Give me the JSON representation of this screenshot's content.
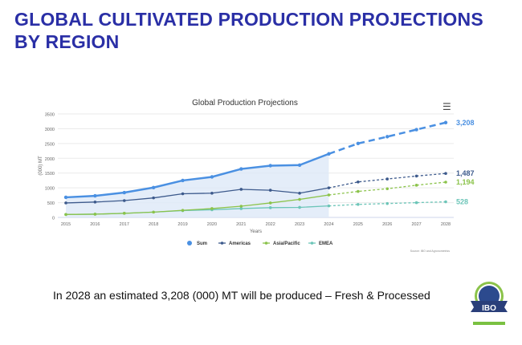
{
  "page": {
    "title": "GLOBAL CULTIVATED PRODUCTION PROJECTIONS\nBY REGION",
    "caption": "In 2028 an estimated 3,208 (000) MT will be produced – Fresh & Processed",
    "logo_text": "IBO"
  },
  "chart_data": {
    "type": "line",
    "title": "Global Production Projections",
    "xlabel": "Years",
    "ylabel": "(000) MT",
    "ylim": [
      0,
      3500
    ],
    "yticks": [
      0,
      500,
      1000,
      1500,
      2000,
      2500,
      3000,
      3500
    ],
    "categories": [
      "2015",
      "2016",
      "2017",
      "2018",
      "2019",
      "2020",
      "2021",
      "2022",
      "2023",
      "2024",
      "2025",
      "2026",
      "2027",
      "2028"
    ],
    "projection_from": "2024",
    "grid": true,
    "legend": "bottom",
    "source": "Source: IBO and Agronometrics",
    "menu_icon": "hamburger-icon",
    "series": [
      {
        "name": "Sum",
        "color": "#4a90e2",
        "values": [
          680,
          730,
          840,
          1010,
          1250,
          1370,
          1640,
          1750,
          1770,
          2150,
          2500,
          2730,
          2970,
          3208
        ],
        "end_label": "3,208",
        "area": true
      },
      {
        "name": "Americas",
        "color": "#3d5a8c",
        "values": [
          490,
          520,
          570,
          660,
          800,
          820,
          950,
          920,
          820,
          1000,
          1200,
          1300,
          1400,
          1487
        ],
        "end_label": "1,487"
      },
      {
        "name": "Asia/Pacific",
        "color": "#8bc34a",
        "values": [
          100,
          110,
          140,
          180,
          240,
          300,
          380,
          490,
          610,
          760,
          880,
          970,
          1090,
          1194
        ],
        "end_label": "1,194"
      },
      {
        "name": "EMEA",
        "color": "#6cc5b8",
        "values": [
          100,
          110,
          140,
          180,
          230,
          260,
          300,
          330,
          340,
          390,
          440,
          470,
          500,
          528
        ],
        "end_label": "528"
      }
    ]
  }
}
